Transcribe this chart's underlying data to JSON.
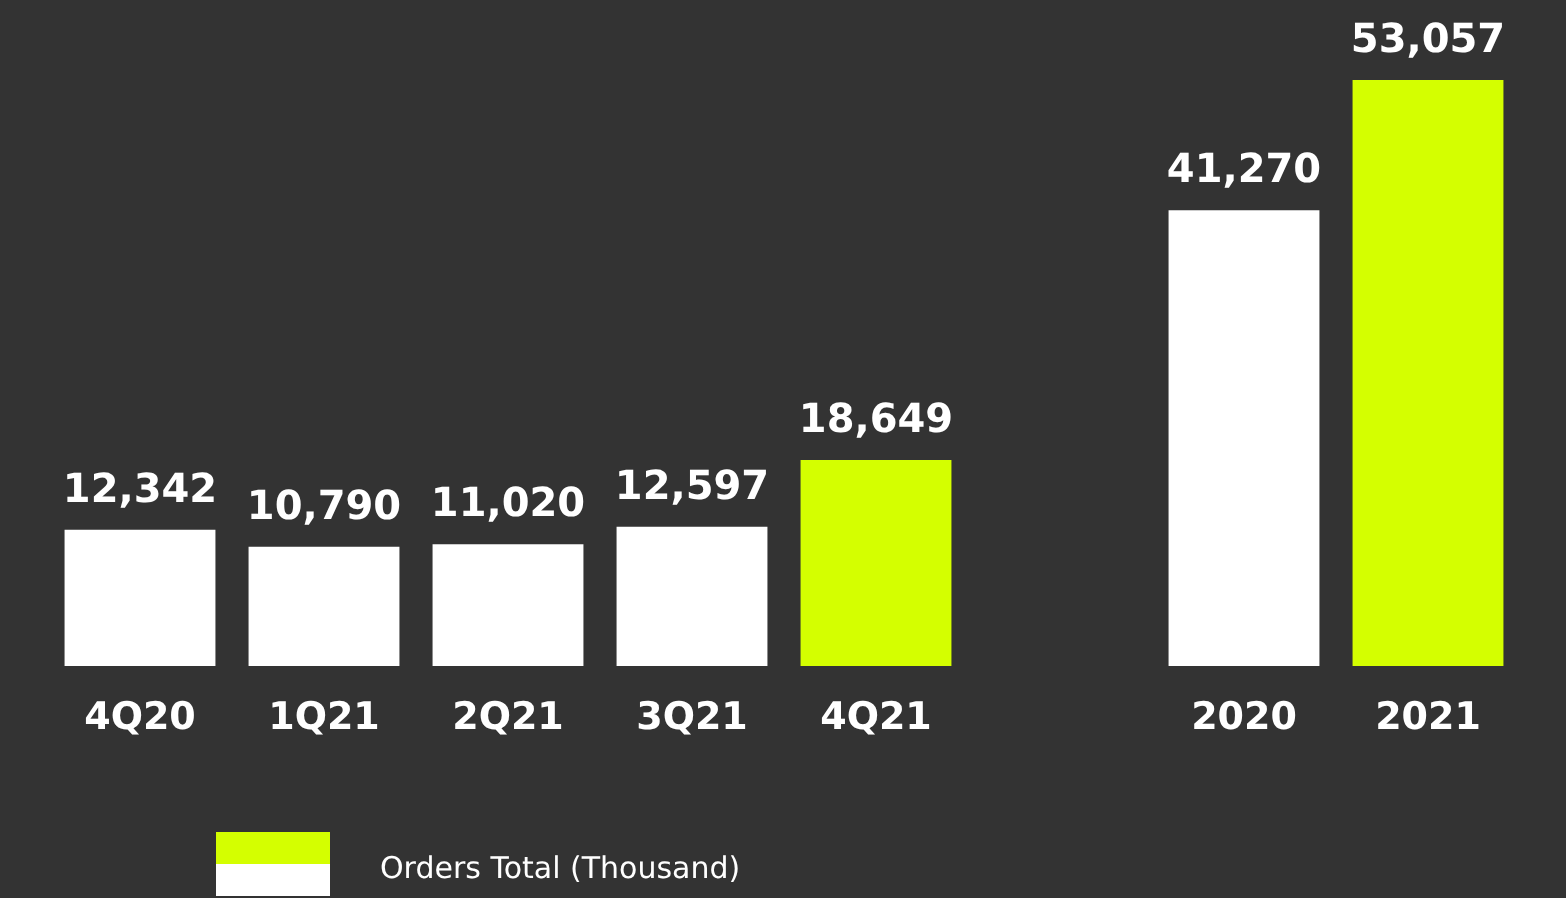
{
  "chart_data": {
    "type": "bar",
    "categories": [
      "4Q20",
      "1Q21",
      "2Q21",
      "3Q21",
      "4Q21",
      null,
      "2020",
      "2021"
    ],
    "series": [
      {
        "name": "Orders Total (Thousand)",
        "values": [
          12342,
          10790,
          11020,
          12597,
          18649,
          null,
          41270,
          53057
        ],
        "value_labels": [
          "12,342",
          "10,790",
          "11,020",
          "12,597",
          "18,649",
          null,
          "41,270",
          "53,057"
        ],
        "colors": [
          "#ffffff",
          "#ffffff",
          "#ffffff",
          "#ffffff",
          "#d4ff00",
          null,
          "#ffffff",
          "#d4ff00"
        ]
      }
    ],
    "legend": "bottom",
    "grid": false
  }
}
